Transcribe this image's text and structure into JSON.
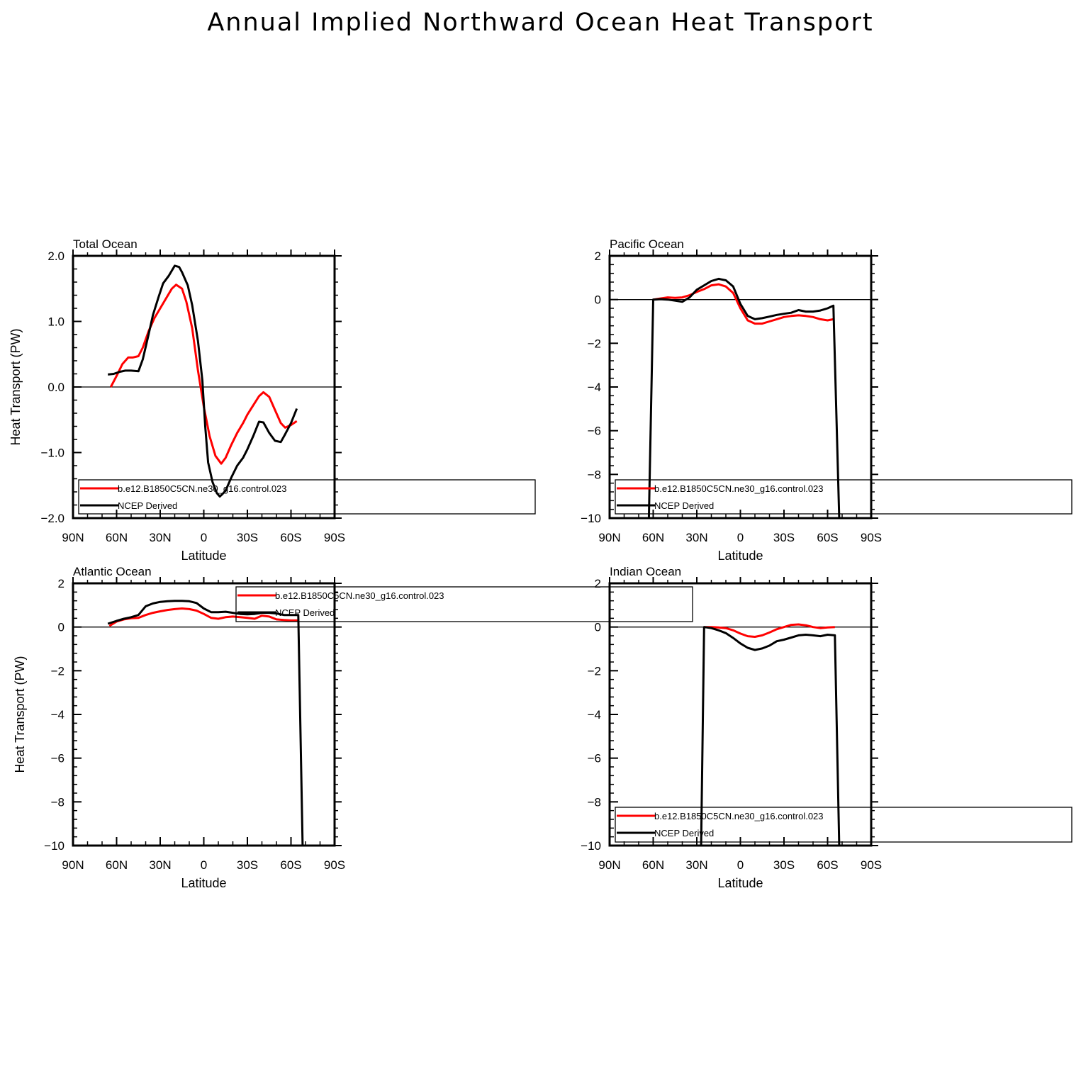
{
  "title": "Annual Implied Northward Ocean Heat Transport",
  "colors": {
    "model": "#ff0000",
    "obs": "#000000",
    "axis": "#000000"
  },
  "chart_data": [
    {
      "type": "line",
      "panel_title": "Total Ocean",
      "xlabel": "Latitude",
      "ylabel": "Heat Transport (PW)",
      "xlim": [
        90,
        -90
      ],
      "ylim": [
        -2.0,
        2.0
      ],
      "xticks": [
        90,
        60,
        30,
        0,
        -30,
        -60,
        -90
      ],
      "xticklabels": [
        "90N",
        "60N",
        "30N",
        "0",
        "30S",
        "60S",
        "90S"
      ],
      "yticks": [
        -2.0,
        -1.0,
        0.0,
        1.0,
        2.0
      ],
      "yticklabels": [
        "−2.0",
        "−1.0",
        "0.0",
        "1.0",
        "2.0"
      ],
      "legend": {
        "placement": "bottom-left",
        "entries": [
          "b.e12.B1850C5CN.ne30_g16.control.023",
          "NCEP Derived"
        ]
      },
      "series": [
        {
          "name": "b.e12.B1850C5CN.ne30_g16.control.023",
          "color": "#ff0000",
          "x": [
            64,
            60,
            56,
            52,
            49,
            45,
            42,
            38,
            34,
            30,
            26,
            22,
            19,
            15,
            12,
            8,
            4,
            0,
            -4,
            -8,
            -12,
            -15,
            -19,
            -23,
            -27,
            -30,
            -34,
            -38,
            -41,
            -45,
            -49,
            -53,
            -56,
            -60,
            -64
          ],
          "y": [
            0.0,
            0.17,
            0.35,
            0.45,
            0.45,
            0.47,
            0.6,
            0.85,
            1.05,
            1.2,
            1.35,
            1.5,
            1.56,
            1.5,
            1.3,
            0.9,
            0.25,
            -0.3,
            -0.75,
            -1.05,
            -1.17,
            -1.08,
            -0.88,
            -0.7,
            -0.55,
            -0.42,
            -0.28,
            -0.14,
            -0.08,
            -0.15,
            -0.35,
            -0.55,
            -0.62,
            -0.58,
            -0.52
          ]
        },
        {
          "name": "NCEP Derived",
          "color": "#000000",
          "x": [
            66,
            62,
            58,
            54,
            50,
            45,
            42,
            38,
            35,
            31,
            28,
            24,
            20,
            17,
            15,
            11,
            8,
            4,
            1,
            -1,
            -3,
            -6,
            -9,
            -11,
            -13,
            -15,
            -19,
            -23,
            -27,
            -30,
            -34,
            -38,
            -41,
            -45,
            -49,
            -53,
            -56,
            -60,
            -64
          ],
          "y": [
            0.19,
            0.2,
            0.23,
            0.25,
            0.25,
            0.24,
            0.42,
            0.8,
            1.1,
            1.38,
            1.58,
            1.7,
            1.85,
            1.83,
            1.75,
            1.55,
            1.25,
            0.7,
            0.1,
            -0.6,
            -1.15,
            -1.45,
            -1.62,
            -1.67,
            -1.63,
            -1.58,
            -1.38,
            -1.2,
            -1.08,
            -0.95,
            -0.75,
            -0.53,
            -0.54,
            -0.7,
            -0.82,
            -0.84,
            -0.72,
            -0.55,
            -0.33
          ]
        }
      ]
    },
    {
      "type": "line",
      "panel_title": "Pacific Ocean",
      "xlabel": "Latitude",
      "ylabel": "",
      "xlim": [
        90,
        -90
      ],
      "ylim": [
        -10,
        2
      ],
      "xticks": [
        90,
        60,
        30,
        0,
        -30,
        -60,
        -90
      ],
      "xticklabels": [
        "90N",
        "60N",
        "30N",
        "0",
        "30S",
        "60S",
        "90S"
      ],
      "yticks": [
        -10,
        -8,
        -6,
        -4,
        -2,
        0,
        2
      ],
      "yticklabels": [
        "−10",
        "−8",
        "−6",
        "−4",
        "−2",
        "0",
        "2"
      ],
      "legend": {
        "placement": "bottom-left",
        "entries": [
          "b.e12.B1850C5CN.ne30_g16.control.023",
          "NCEP Derived"
        ]
      },
      "series": [
        {
          "name": "b.e12.B1850C5CN.ne30_g16.control.023",
          "color": "#ff0000",
          "x": [
            60,
            55,
            50,
            45,
            40,
            35,
            30,
            25,
            20,
            15,
            10,
            5,
            0,
            -5,
            -10,
            -15,
            -20,
            -25,
            -30,
            -35,
            -40,
            -45,
            -50,
            -55,
            -60,
            -64
          ],
          "y": [
            0.0,
            0.05,
            0.1,
            0.08,
            0.1,
            0.2,
            0.35,
            0.48,
            0.65,
            0.7,
            0.6,
            0.3,
            -0.4,
            -0.95,
            -1.1,
            -1.1,
            -1.0,
            -0.9,
            -0.8,
            -0.75,
            -0.72,
            -0.75,
            -0.8,
            -0.9,
            -0.95,
            -0.9
          ]
        },
        {
          "name": "NCEP Derived",
          "color": "#000000",
          "x": [
            63,
            60,
            55,
            50,
            45,
            40,
            35,
            30,
            25,
            20,
            15,
            10,
            5,
            0,
            -5,
            -10,
            -15,
            -20,
            -25,
            -30,
            -35,
            -40,
            -45,
            -50,
            -55,
            -60,
            -64,
            -68
          ],
          "y": [
            -10,
            0.0,
            0.02,
            0.0,
            -0.05,
            -0.1,
            0.1,
            0.45,
            0.65,
            0.85,
            0.95,
            0.88,
            0.6,
            -0.2,
            -0.75,
            -0.9,
            -0.85,
            -0.78,
            -0.7,
            -0.65,
            -0.6,
            -0.48,
            -0.55,
            -0.55,
            -0.5,
            -0.4,
            -0.28,
            -10
          ]
        }
      ]
    },
    {
      "type": "line",
      "panel_title": "Atlantic Ocean",
      "xlabel": "Latitude",
      "ylabel": "Heat Transport (PW)",
      "xlim": [
        90,
        -90
      ],
      "ylim": [
        -10,
        2
      ],
      "xticks": [
        90,
        60,
        30,
        0,
        -30,
        -60,
        -90
      ],
      "xticklabels": [
        "90N",
        "60N",
        "30N",
        "0",
        "30S",
        "60S",
        "90S"
      ],
      "yticks": [
        -10,
        -8,
        -6,
        -4,
        -2,
        0,
        2
      ],
      "yticklabels": [
        "−10",
        "−8",
        "−6",
        "−4",
        "−2",
        "0",
        "2"
      ],
      "legend": {
        "placement": "top-right",
        "entries": [
          "b.e12.B1850C5CN.ne30_g16.control.023",
          "NCEP Derived"
        ]
      },
      "series": [
        {
          "name": "b.e12.B1850C5CN.ne30_g16.control.023",
          "color": "#ff0000",
          "x": [
            65,
            60,
            55,
            50,
            45,
            40,
            35,
            30,
            25,
            20,
            15,
            10,
            5,
            0,
            -5,
            -10,
            -15,
            -20,
            -25,
            -30,
            -35,
            -40,
            -45,
            -50,
            -55,
            -60,
            -65
          ],
          "y": [
            0.05,
            0.25,
            0.35,
            0.4,
            0.42,
            0.55,
            0.65,
            0.72,
            0.78,
            0.82,
            0.85,
            0.82,
            0.75,
            0.6,
            0.42,
            0.38,
            0.45,
            0.48,
            0.45,
            0.42,
            0.38,
            0.52,
            0.48,
            0.35,
            0.32,
            0.3,
            0.3
          ]
        },
        {
          "name": "NCEP Derived",
          "color": "#000000",
          "x": [
            66,
            60,
            55,
            50,
            45,
            40,
            35,
            30,
            25,
            20,
            15,
            10,
            5,
            0,
            -5,
            -10,
            -15,
            -20,
            -25,
            -30,
            -35,
            -40,
            -45,
            -50,
            -55,
            -60,
            -65,
            -68
          ],
          "y": [
            0.15,
            0.28,
            0.38,
            0.45,
            0.55,
            0.95,
            1.08,
            1.15,
            1.18,
            1.2,
            1.2,
            1.18,
            1.1,
            0.85,
            0.68,
            0.68,
            0.7,
            0.65,
            0.6,
            0.58,
            0.6,
            0.65,
            0.65,
            0.62,
            0.55,
            0.55,
            0.55,
            -10
          ]
        }
      ]
    },
    {
      "type": "line",
      "panel_title": "Indian Ocean",
      "xlabel": "Latitude",
      "ylabel": "",
      "xlim": [
        90,
        -90
      ],
      "ylim": [
        -10,
        2
      ],
      "xticks": [
        90,
        60,
        30,
        0,
        -30,
        -60,
        -90
      ],
      "xticklabels": [
        "90N",
        "60N",
        "30N",
        "0",
        "30S",
        "60S",
        "90S"
      ],
      "yticks": [
        -10,
        -8,
        -6,
        -4,
        -2,
        0,
        2
      ],
      "yticklabels": [
        "−10",
        "−8",
        "−6",
        "−4",
        "−2",
        "0",
        "2"
      ],
      "legend": {
        "placement": "bottom-left",
        "entries": [
          "b.e12.B1850C5CN.ne30_g16.control.023",
          "NCEP Derived"
        ]
      },
      "series": [
        {
          "name": "b.e12.B1850C5CN.ne30_g16.control.023",
          "color": "#ff0000",
          "x": [
            25,
            20,
            15,
            10,
            5,
            0,
            -5,
            -10,
            -15,
            -20,
            -25,
            -30,
            -35,
            -40,
            -45,
            -50,
            -55,
            -60,
            -65
          ],
          "y": [
            0.0,
            0.0,
            -0.02,
            -0.05,
            -0.15,
            -0.3,
            -0.42,
            -0.45,
            -0.38,
            -0.25,
            -0.1,
            0.0,
            0.1,
            0.12,
            0.08,
            0.0,
            -0.05,
            -0.02,
            0.0
          ]
        },
        {
          "name": "NCEP Derived",
          "color": "#000000",
          "x": [
            27,
            25,
            20,
            15,
            10,
            5,
            0,
            -5,
            -10,
            -15,
            -20,
            -25,
            -30,
            -35,
            -40,
            -45,
            -50,
            -55,
            -60,
            -65,
            -68
          ],
          "y": [
            -10,
            0.0,
            -0.05,
            -0.15,
            -0.28,
            -0.5,
            -0.75,
            -0.95,
            -1.05,
            -0.98,
            -0.85,
            -0.65,
            -0.58,
            -0.48,
            -0.38,
            -0.35,
            -0.38,
            -0.42,
            -0.35,
            -0.38,
            -10
          ]
        }
      ]
    }
  ]
}
